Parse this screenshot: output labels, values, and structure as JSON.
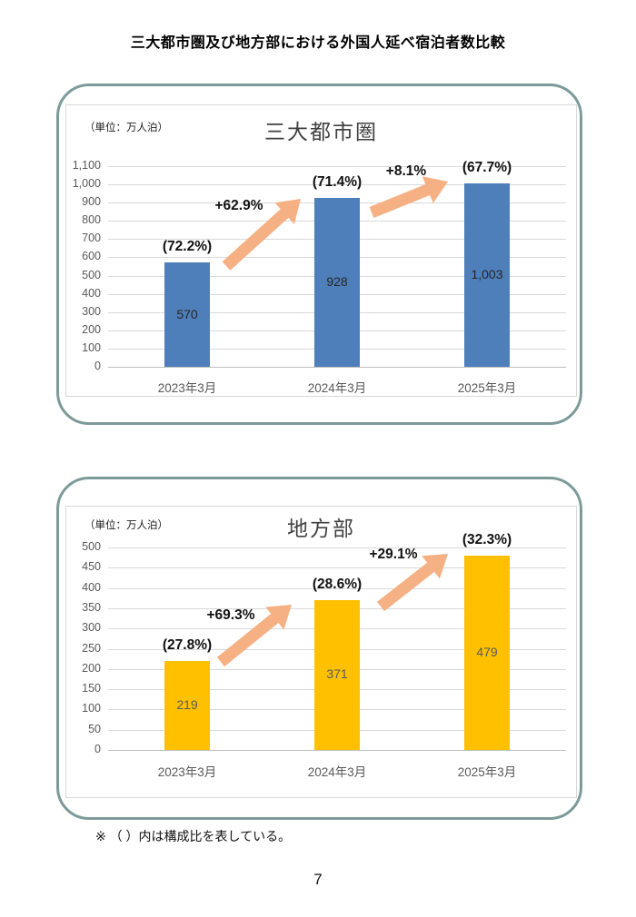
{
  "page": {
    "title": "三大都市圏及び地方部における外国人延べ宿泊者数比較",
    "note": "※ （ ）内は構成比を表している。",
    "page_number": "7"
  },
  "colors": {
    "panel_border": "#7d9a9a",
    "grid": "#d9d9d9",
    "axis": "#bfbfbf",
    "tick_text": "#595959",
    "category_text": "#595959"
  },
  "chart_data": [
    {
      "type": "bar",
      "title": "三大都市圏",
      "unit_label": "（単位：万人泊）",
      "categories": [
        "2023年3月",
        "2024年3月",
        "2025年3月"
      ],
      "values": [
        570,
        928,
        1003
      ],
      "value_labels": [
        "570",
        "928",
        "1,003"
      ],
      "share_labels": [
        "(72.2%)",
        "(71.4%)",
        "(67.7%)"
      ],
      "growth_labels": [
        "+62.9%",
        "+8.1%"
      ],
      "ylim": [
        0,
        1100
      ],
      "ytick_step": 100,
      "ytick_labels": [
        "0",
        "100",
        "200",
        "300",
        "400",
        "500",
        "600",
        "700",
        "800",
        "900",
        "1,000",
        "1,100"
      ],
      "grid": true,
      "legend": "none",
      "bar_color": "#4e7fba",
      "value_text_color": "#262626",
      "arrow_color": "#f5b183"
    },
    {
      "type": "bar",
      "title": "地方部",
      "unit_label": "（単位：万人泊）",
      "categories": [
        "2023年3月",
        "2024年3月",
        "2025年3月"
      ],
      "values": [
        219,
        371,
        479
      ],
      "value_labels": [
        "219",
        "371",
        "479"
      ],
      "share_labels": [
        "(27.8%)",
        "(28.6%)",
        "(32.3%)"
      ],
      "growth_labels": [
        "+69.3%",
        "+29.1%"
      ],
      "ylim": [
        0,
        500
      ],
      "ytick_step": 50,
      "ytick_labels": [
        "0",
        "50",
        "100",
        "150",
        "200",
        "250",
        "300",
        "350",
        "400",
        "450",
        "500"
      ],
      "grid": true,
      "legend": "none",
      "bar_color": "#ffc000",
      "value_text_color": "#5a5a5a",
      "arrow_color": "#f5b183"
    }
  ]
}
